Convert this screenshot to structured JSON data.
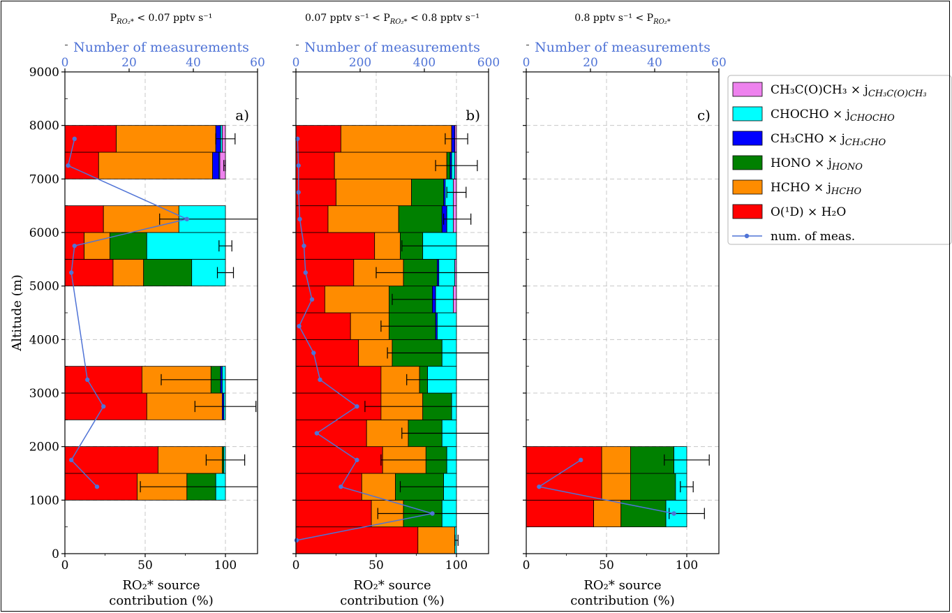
{
  "figure": {
    "ylabel": "Altitude (m)",
    "xlabel_line1": "RO₂* source",
    "xlabel_line2": "contribution (%)",
    "top_axis_label": "Number of measurements"
  },
  "colors": {
    "O1D_H2O": "#ff0000",
    "HCHO": "#ff8c00",
    "HONO": "#008000",
    "CH3CHO": "#0000ff",
    "CHOCHO": "#00ffff",
    "CH3COCH3": "#ee82ee",
    "meas": "#4f73d6"
  },
  "legend": [
    {
      "key": "CH3COCH3",
      "text": "CH₃C(O)CH₃ × j",
      "sub": "CH₃C(O)CH₃"
    },
    {
      "key": "CHOCHO",
      "text": "CHOCHO × j",
      "sub": "CHOCHO"
    },
    {
      "key": "CH3CHO",
      "text": "CH₃CHO × j",
      "sub": "CH₃CHO"
    },
    {
      "key": "HONO",
      "text": "HONO × j",
      "sub": "HONO"
    },
    {
      "key": "HCHO",
      "text": "HCHO × j",
      "sub": "HCHO"
    },
    {
      "key": "O1D_H2O",
      "text": "O(¹D) × H₂O",
      "sub": ""
    },
    {
      "key": "meas",
      "text": "num. of meas.",
      "sub": ""
    }
  ],
  "chart_data": [
    {
      "type": "bar",
      "orientation": "horizontal-stacked",
      "panel_label": "a)",
      "title": "P_RO2* < 0.07 pptv s⁻¹",
      "title_main": "P",
      "title_sub": "RO₂*",
      "title_rest": " < 0.07 pptv s⁻¹",
      "xlabel": "RO₂* source contribution (%)",
      "ylabel": "Altitude (m)",
      "xlim": [
        0,
        120
      ],
      "xticks": [
        0,
        50,
        100
      ],
      "ylim": [
        0,
        9000
      ],
      "yticks": [
        0,
        1000,
        2000,
        3000,
        4000,
        5000,
        6000,
        7000,
        8000,
        9000
      ],
      "top_axis": {
        "label": "Number of measurements",
        "lim": [
          0,
          60
        ],
        "ticks": [
          0,
          20,
          40,
          60
        ]
      },
      "bin_width": 500,
      "bins": [
        {
          "bottom": 1000,
          "O1D_H2O": 45,
          "HCHO": 31,
          "HONO": 18,
          "CH3CHO": 0,
          "CHOCHO": 6,
          "CH3COCH3": 0,
          "err_lo": 47,
          "err_hi": 120
        },
        {
          "bottom": 1500,
          "O1D_H2O": 58,
          "HCHO": 40,
          "HONO": 1,
          "CH3CHO": 0,
          "CHOCHO": 1,
          "CH3COCH3": 0,
          "err_lo": 88,
          "err_hi": 112
        },
        {
          "bottom": 2500,
          "O1D_H2O": 51,
          "HCHO": 47,
          "HONO": 0,
          "CH3CHO": 1,
          "CHOCHO": 1,
          "CH3COCH3": 0,
          "err_lo": 81,
          "err_hi": 119
        },
        {
          "bottom": 3000,
          "O1D_H2O": 48,
          "HCHO": 43,
          "HONO": 6,
          "CH3CHO": 1,
          "CHOCHO": 2,
          "CH3COCH3": 0,
          "err_lo": 60,
          "err_hi": 120
        },
        {
          "bottom": 5000,
          "O1D_H2O": 30,
          "HCHO": 19,
          "HONO": 30,
          "CH3CHO": 0,
          "CHOCHO": 21,
          "CH3COCH3": 0,
          "err_lo": 95,
          "err_hi": 105
        },
        {
          "bottom": 5500,
          "O1D_H2O": 12,
          "HCHO": 16,
          "HONO": 23,
          "CH3CHO": 0,
          "CHOCHO": 49,
          "CH3COCH3": 0,
          "err_lo": 96,
          "err_hi": 104
        },
        {
          "bottom": 6000,
          "O1D_H2O": 24,
          "HCHO": 47,
          "HONO": 0,
          "CH3CHO": 0,
          "CHOCHO": 29,
          "CH3COCH3": 0,
          "err_lo": 59,
          "err_hi": 120
        },
        {
          "bottom": 7000,
          "O1D_H2O": 21,
          "HCHO": 71,
          "HONO": 0,
          "CH3CHO": 4,
          "CHOCHO": 0.5,
          "CH3COCH3": 3.5,
          "err_lo": 99,
          "err_hi": 100
        },
        {
          "bottom": 7500,
          "O1D_H2O": 32,
          "HCHO": 62,
          "HONO": 0,
          "CH3CHO": 3,
          "CHOCHO": 1,
          "CH3COCH3": 2,
          "err_lo": 94,
          "err_hi": 106
        }
      ],
      "measurements": [
        {
          "altitude": 1250,
          "count": 10
        },
        {
          "altitude": 1750,
          "count": 2
        },
        {
          "altitude": 2750,
          "count": 12
        },
        {
          "altitude": 3250,
          "count": 7
        },
        {
          "altitude": 5250,
          "count": 2
        },
        {
          "altitude": 5750,
          "count": 3
        },
        {
          "altitude": 6250,
          "count": 38
        },
        {
          "altitude": 7250,
          "count": 1
        },
        {
          "altitude": 7750,
          "count": 3
        }
      ]
    },
    {
      "type": "bar",
      "orientation": "horizontal-stacked",
      "panel_label": "b)",
      "title": "0.07 pptv s⁻¹ < P_RO2* < 0.8 pptv s⁻¹",
      "title_pre": "0.07 pptv s⁻¹ < ",
      "title_main": "P",
      "title_sub": "RO₂*",
      "title_rest": " < 0.8 pptv s⁻¹",
      "xlabel": "RO₂* source contribution (%)",
      "xlim": [
        0,
        120
      ],
      "xticks": [
        0,
        50,
        100
      ],
      "ylim": [
        0,
        9000
      ],
      "top_axis": {
        "label": "Number of measurements",
        "lim": [
          0,
          600
        ],
        "ticks": [
          0,
          200,
          400,
          600
        ]
      },
      "bin_width": 500,
      "bins": [
        {
          "bottom": 0,
          "O1D_H2O": 76,
          "HCHO": 23,
          "HONO": 0,
          "CH3CHO": 0,
          "CHOCHO": 1,
          "CH3COCH3": 0,
          "err_lo": 99,
          "err_hi": 101
        },
        {
          "bottom": 500,
          "O1D_H2O": 47,
          "HCHO": 20,
          "HONO": 24,
          "CH3CHO": 0,
          "CHOCHO": 9,
          "CH3COCH3": 0,
          "err_lo": 51,
          "err_hi": 120
        },
        {
          "bottom": 1000,
          "O1D_H2O": 41,
          "HCHO": 21,
          "HONO": 30,
          "CH3CHO": 0,
          "CHOCHO": 8,
          "CH3COCH3": 0,
          "err_lo": 65,
          "err_hi": 120
        },
        {
          "bottom": 1500,
          "O1D_H2O": 54,
          "HCHO": 27,
          "HONO": 13,
          "CH3CHO": 0,
          "CHOCHO": 6,
          "CH3COCH3": 0,
          "err_lo": 53,
          "err_hi": 120
        },
        {
          "bottom": 2000,
          "O1D_H2O": 44,
          "HCHO": 26,
          "HONO": 21,
          "CH3CHO": 0,
          "CHOCHO": 9,
          "CH3COCH3": 0,
          "err_lo": 66,
          "err_hi": 120
        },
        {
          "bottom": 2500,
          "O1D_H2O": 53,
          "HCHO": 26,
          "HONO": 18,
          "CH3CHO": 0,
          "CHOCHO": 3,
          "CH3COCH3": 0,
          "err_lo": 43,
          "err_hi": 120
        },
        {
          "bottom": 3000,
          "O1D_H2O": 53,
          "HCHO": 24,
          "HONO": 5,
          "CH3CHO": 0,
          "CHOCHO": 18,
          "CH3COCH3": 0,
          "err_lo": 69,
          "err_hi": 120
        },
        {
          "bottom": 3500,
          "O1D_H2O": 39,
          "HCHO": 21,
          "HONO": 31,
          "CH3CHO": 0,
          "CHOCHO": 9,
          "CH3COCH3": 0,
          "err_lo": 57,
          "err_hi": 120
        },
        {
          "bottom": 4000,
          "O1D_H2O": 34,
          "HCHO": 24,
          "HONO": 29,
          "CH3CHO": 1,
          "CHOCHO": 12,
          "CH3COCH3": 0,
          "err_lo": 53,
          "err_hi": 120
        },
        {
          "bottom": 4500,
          "O1D_H2O": 18,
          "HCHO": 40,
          "HONO": 27,
          "CH3CHO": 2,
          "CHOCHO": 11,
          "CH3COCH3": 2,
          "err_lo": 60,
          "err_hi": 120
        },
        {
          "bottom": 5000,
          "O1D_H2O": 36,
          "HCHO": 31,
          "HONO": 21,
          "CH3CHO": 1,
          "CHOCHO": 10,
          "CH3COCH3": 1,
          "err_lo": 50,
          "err_hi": 120
        },
        {
          "bottom": 5500,
          "O1D_H2O": 49,
          "HCHO": 16,
          "HONO": 14,
          "CH3CHO": 0,
          "CHOCHO": 21,
          "CH3COCH3": 0,
          "err_lo": 66,
          "err_hi": 120
        },
        {
          "bottom": 6000,
          "O1D_H2O": 20,
          "HCHO": 44,
          "HONO": 27,
          "CH3CHO": 3,
          "CHOCHO": 4,
          "CH3COCH3": 2,
          "err_lo": 92,
          "err_hi": 109
        },
        {
          "bottom": 6500,
          "O1D_H2O": 25,
          "HCHO": 47,
          "HONO": 20,
          "CH3CHO": 1,
          "CHOCHO": 5,
          "CH3COCH3": 2,
          "err_lo": 94,
          "err_hi": 106
        },
        {
          "bottom": 7000,
          "O1D_H2O": 24,
          "HCHO": 70,
          "HONO": 2,
          "CH3CHO": 1,
          "CHOCHO": 2,
          "CH3COCH3": 1,
          "err_lo": 87,
          "err_hi": 113
        },
        {
          "bottom": 7500,
          "O1D_H2O": 28,
          "HCHO": 69,
          "HONO": 0,
          "CH3CHO": 2,
          "CHOCHO": 0,
          "CH3COCH3": 1,
          "err_lo": 93,
          "err_hi": 107
        }
      ],
      "measurements": [
        {
          "altitude": 250,
          "count": 2
        },
        {
          "altitude": 750,
          "count": 425
        },
        {
          "altitude": 1250,
          "count": 140
        },
        {
          "altitude": 1750,
          "count": 190
        },
        {
          "altitude": 2250,
          "count": 65
        },
        {
          "altitude": 2750,
          "count": 190
        },
        {
          "altitude": 3250,
          "count": 75
        },
        {
          "altitude": 3750,
          "count": 55
        },
        {
          "altitude": 4250,
          "count": 10
        },
        {
          "altitude": 4750,
          "count": 50
        },
        {
          "altitude": 5250,
          "count": 30
        },
        {
          "altitude": 5750,
          "count": 25
        },
        {
          "altitude": 6250,
          "count": 12
        },
        {
          "altitude": 6750,
          "count": 8
        },
        {
          "altitude": 7250,
          "count": 8
        },
        {
          "altitude": 7750,
          "count": 5
        }
      ]
    },
    {
      "type": "bar",
      "orientation": "horizontal-stacked",
      "panel_label": "c)",
      "title": "0.8 pptv s⁻¹ < P_RO2*",
      "title_pre": "0.8 pptv s⁻¹ < ",
      "title_main": "P",
      "title_sub": "RO₂*",
      "title_rest": "",
      "xlabel": "RO₂* source contribution (%)",
      "xlim": [
        0,
        120
      ],
      "xticks": [
        0,
        50,
        100
      ],
      "ylim": [
        0,
        9000
      ],
      "top_axis": {
        "label": "Number of measurements",
        "lim": [
          0,
          60
        ],
        "ticks": [
          0,
          20,
          40,
          60
        ]
      },
      "bin_width": 500,
      "bins": [
        {
          "bottom": 500,
          "O1D_H2O": 42,
          "HCHO": 17,
          "HONO": 28,
          "CH3CHO": 0,
          "CHOCHO": 13,
          "CH3COCH3": 0,
          "err_lo": 89,
          "err_hi": 111
        },
        {
          "bottom": 1000,
          "O1D_H2O": 47,
          "HCHO": 18,
          "HONO": 28,
          "CH3CHO": 0,
          "CHOCHO": 7,
          "CH3COCH3": 0,
          "err_lo": 96,
          "err_hi": 104
        },
        {
          "bottom": 1500,
          "O1D_H2O": 47,
          "HCHO": 18,
          "HONO": 27,
          "CH3CHO": 0,
          "CHOCHO": 8,
          "CH3COCH3": 0,
          "err_lo": 86,
          "err_hi": 114
        }
      ],
      "measurements": [
        {
          "altitude": 750,
          "count": 46
        },
        {
          "altitude": 1250,
          "count": 4
        },
        {
          "altitude": 1750,
          "count": 17
        }
      ]
    }
  ]
}
